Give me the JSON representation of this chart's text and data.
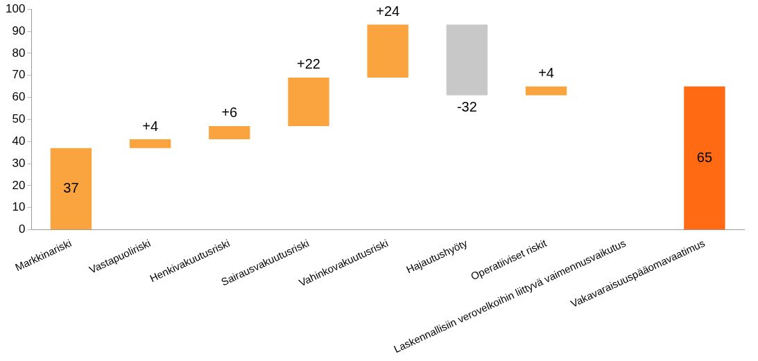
{
  "chart_data": {
    "type": "bar",
    "categories": [
      "Markkinariski",
      "Vastapuoliriski",
      "Henkivakuutusriski",
      "Sairausvakuutusriski",
      "Vahinkovakuutusriski",
      "Hajautushyöty",
      "Operatiiviset riskit",
      "Laskennallisiin verovelkoihin liittyvä vaimennusvaikutus",
      "Vakavaraisuuspääomavaatimus"
    ],
    "values": [
      37,
      4,
      6,
      22,
      24,
      -32,
      4,
      null,
      65
    ],
    "base": [
      0,
      37,
      41,
      47,
      69,
      93,
      61,
      null,
      0
    ],
    "colors": [
      "#f9a43f",
      "#f9a43f",
      "#f9a43f",
      "#f9a43f",
      "#f9a43f",
      "#c8c8c8",
      "#f9a43f",
      "#f9a43f",
      "#ff6a13"
    ],
    "value_labels": [
      "37",
      "+4",
      "+6",
      "+22",
      "+24",
      "-32",
      "+4",
      null,
      "65"
    ],
    "ylim": [
      0,
      100
    ],
    "yticks": [
      0,
      10,
      20,
      30,
      40,
      50,
      60,
      70,
      80,
      90,
      100
    ],
    "grid": false,
    "legend": false
  }
}
